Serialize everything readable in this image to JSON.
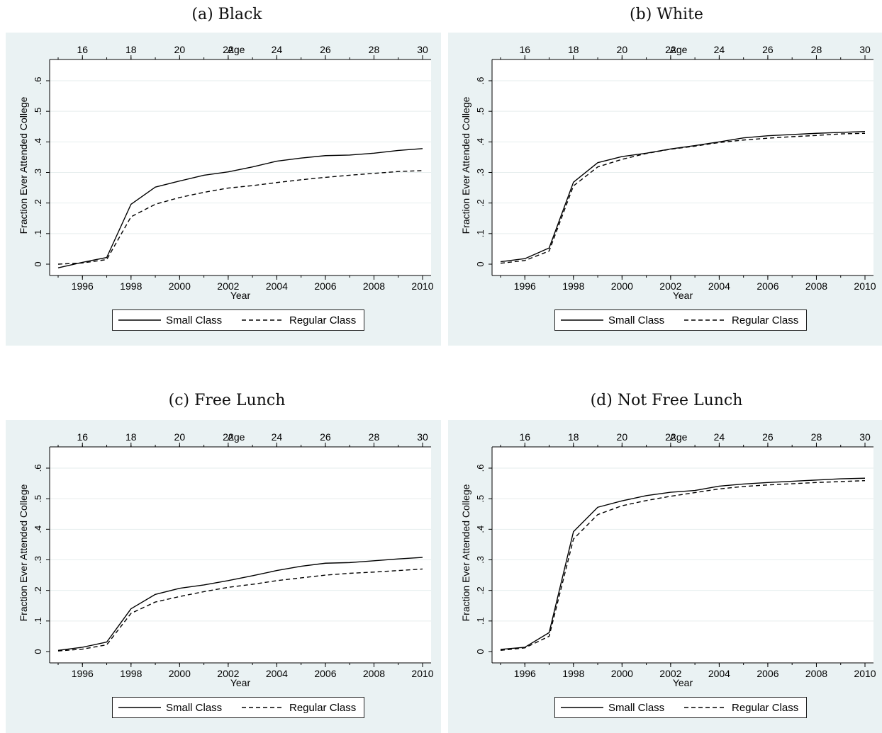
{
  "chart_data": [
    {
      "type": "line",
      "title": "(a) Black",
      "xlabel": "Year",
      "x2label": "Age",
      "ylabel": "Fraction Ever Attended College",
      "xlim": [
        1995,
        2010
      ],
      "ylim": [
        0,
        0.6
      ],
      "xticks": [
        "1996",
        "1998",
        "2000",
        "2002",
        "2004",
        "2006",
        "2008",
        "2010"
      ],
      "x2ticks": [
        "16",
        "18",
        "20",
        "22",
        "24",
        "26",
        "28",
        "30"
      ],
      "yticks": [
        "0",
        ".1",
        ".2",
        ".3",
        ".4",
        ".5",
        ".6"
      ],
      "grid": true,
      "legend": "bottom",
      "x": [
        1995,
        1996,
        1997,
        1998,
        1999,
        2000,
        2001,
        2002,
        2003,
        2004,
        2005,
        2006,
        2007,
        2008,
        2009,
        2010
      ],
      "series": [
        {
          "name": "Small Class",
          "style": "solid",
          "values": [
            -0.012,
            0.006,
            0.022,
            0.196,
            0.252,
            0.272,
            0.291,
            0.302,
            0.318,
            0.337,
            0.347,
            0.355,
            0.357,
            0.363,
            0.372,
            0.378
          ]
        },
        {
          "name": "Regular Class",
          "style": "dashed",
          "values": [
            0.0,
            0.004,
            0.015,
            0.155,
            0.196,
            0.218,
            0.235,
            0.249,
            0.257,
            0.267,
            0.276,
            0.284,
            0.291,
            0.297,
            0.303,
            0.306
          ]
        }
      ]
    },
    {
      "type": "line",
      "title": "(b) White",
      "xlabel": "Year",
      "x2label": "Age",
      "ylabel": "Fraction Ever Attended College",
      "xlim": [
        1995,
        2010
      ],
      "ylim": [
        0,
        0.6
      ],
      "xticks": [
        "1996",
        "1998",
        "2000",
        "2002",
        "2004",
        "2006",
        "2008",
        "2010"
      ],
      "x2ticks": [
        "16",
        "18",
        "20",
        "22",
        "24",
        "26",
        "28",
        "30"
      ],
      "yticks": [
        "0",
        ".1",
        ".2",
        ".3",
        ".4",
        ".5",
        ".6"
      ],
      "grid": true,
      "legend": "bottom",
      "x": [
        1995,
        1996,
        1997,
        1998,
        1999,
        2000,
        2001,
        2002,
        2003,
        2004,
        2005,
        2006,
        2007,
        2008,
        2009,
        2010
      ],
      "series": [
        {
          "name": "Small Class",
          "style": "solid",
          "values": [
            0.008,
            0.018,
            0.053,
            0.268,
            0.332,
            0.352,
            0.363,
            0.377,
            0.388,
            0.4,
            0.413,
            0.42,
            0.424,
            0.428,
            0.431,
            0.434
          ]
        },
        {
          "name": "Regular Class",
          "style": "dashed",
          "values": [
            0.003,
            0.012,
            0.043,
            0.256,
            0.318,
            0.343,
            0.362,
            0.376,
            0.386,
            0.398,
            0.406,
            0.412,
            0.417,
            0.421,
            0.426,
            0.428
          ]
        }
      ]
    },
    {
      "type": "line",
      "title": "(c) Free Lunch",
      "xlabel": "Year",
      "x2label": "Age",
      "ylabel": "Fraction Ever Attended College",
      "xlim": [
        1995,
        2010
      ],
      "ylim": [
        0,
        0.6
      ],
      "xticks": [
        "1996",
        "1998",
        "2000",
        "2002",
        "2004",
        "2006",
        "2008",
        "2010"
      ],
      "x2ticks": [
        "16",
        "18",
        "20",
        "22",
        "24",
        "26",
        "28",
        "30"
      ],
      "yticks": [
        "0",
        ".1",
        ".2",
        ".3",
        ".4",
        ".5",
        ".6"
      ],
      "grid": true,
      "legend": "bottom",
      "x": [
        1995,
        1996,
        1997,
        1998,
        1999,
        2000,
        2001,
        2002,
        2003,
        2004,
        2005,
        2006,
        2007,
        2008,
        2009,
        2010
      ],
      "series": [
        {
          "name": "Small Class",
          "style": "solid",
          "values": [
            0.004,
            0.014,
            0.031,
            0.14,
            0.187,
            0.207,
            0.218,
            0.232,
            0.248,
            0.265,
            0.279,
            0.289,
            0.291,
            0.297,
            0.303,
            0.308
          ]
        },
        {
          "name": "Regular Class",
          "style": "dashed",
          "values": [
            0.002,
            0.008,
            0.022,
            0.125,
            0.162,
            0.18,
            0.196,
            0.21,
            0.22,
            0.232,
            0.241,
            0.25,
            0.256,
            0.26,
            0.265,
            0.27
          ]
        }
      ]
    },
    {
      "type": "line",
      "title": "(d) Not Free Lunch",
      "xlabel": "Year",
      "x2label": "Age",
      "ylabel": "Fraction Ever Attended College",
      "xlim": [
        1995,
        2010
      ],
      "ylim": [
        0,
        0.6
      ],
      "xticks": [
        "1996",
        "1998",
        "2000",
        "2002",
        "2004",
        "2006",
        "2008",
        "2010"
      ],
      "x2ticks": [
        "16",
        "18",
        "20",
        "22",
        "24",
        "26",
        "28",
        "30"
      ],
      "yticks": [
        "0",
        ".1",
        ".2",
        ".3",
        ".4",
        ".5",
        ".6"
      ],
      "grid": true,
      "legend": "bottom",
      "x": [
        1995,
        1996,
        1997,
        1998,
        1999,
        2000,
        2001,
        2002,
        2003,
        2004,
        2005,
        2006,
        2007,
        2008,
        2009,
        2010
      ],
      "series": [
        {
          "name": "Small Class",
          "style": "solid",
          "values": [
            0.007,
            0.014,
            0.062,
            0.392,
            0.472,
            0.493,
            0.51,
            0.521,
            0.527,
            0.541,
            0.548,
            0.553,
            0.557,
            0.561,
            0.565,
            0.567
          ]
        },
        {
          "name": "Regular Class",
          "style": "dashed",
          "values": [
            0.004,
            0.012,
            0.05,
            0.368,
            0.448,
            0.477,
            0.494,
            0.508,
            0.52,
            0.532,
            0.54,
            0.545,
            0.549,
            0.553,
            0.556,
            0.559
          ]
        }
      ]
    }
  ],
  "colors": {
    "panel_background": "#eaf2f3",
    "plot_background": "#ffffff",
    "line": "#000000",
    "grid": "#e6eeee"
  }
}
